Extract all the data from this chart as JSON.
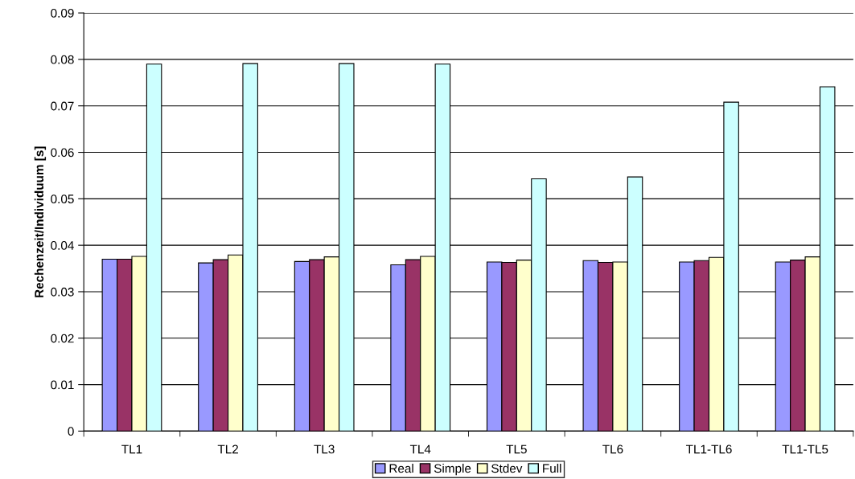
{
  "chart_data": {
    "type": "bar",
    "ylabel": "Rechenzeit/Individuum [s]",
    "categories": [
      "TL1",
      "TL2",
      "TL3",
      "TL4",
      "TL5",
      "TL6",
      "TL1-TL6",
      "TL1-TL5"
    ],
    "series": [
      {
        "name": "Real",
        "color": "#9999ff",
        "values": [
          0.037,
          0.0362,
          0.0365,
          0.0358,
          0.0364,
          0.0367,
          0.0364,
          0.0364
        ]
      },
      {
        "name": "Simple",
        "color": "#993366",
        "values": [
          0.037,
          0.0369,
          0.0369,
          0.0369,
          0.0363,
          0.0363,
          0.0367,
          0.0368
        ]
      },
      {
        "name": "Stdev",
        "color": "#ffffcc",
        "values": [
          0.0376,
          0.0379,
          0.0375,
          0.0376,
          0.0368,
          0.0364,
          0.0374,
          0.0375
        ]
      },
      {
        "name": "Full",
        "color": "#ccffff",
        "values": [
          0.079,
          0.0791,
          0.0791,
          0.079,
          0.0543,
          0.0547,
          0.0708,
          0.0741
        ]
      }
    ],
    "ylim": [
      0,
      0.09
    ],
    "yticks": [
      0,
      0.01,
      0.02,
      0.03,
      0.04,
      0.05,
      0.06,
      0.07,
      0.08,
      0.09
    ],
    "grid": "y",
    "legend": "bottom"
  }
}
